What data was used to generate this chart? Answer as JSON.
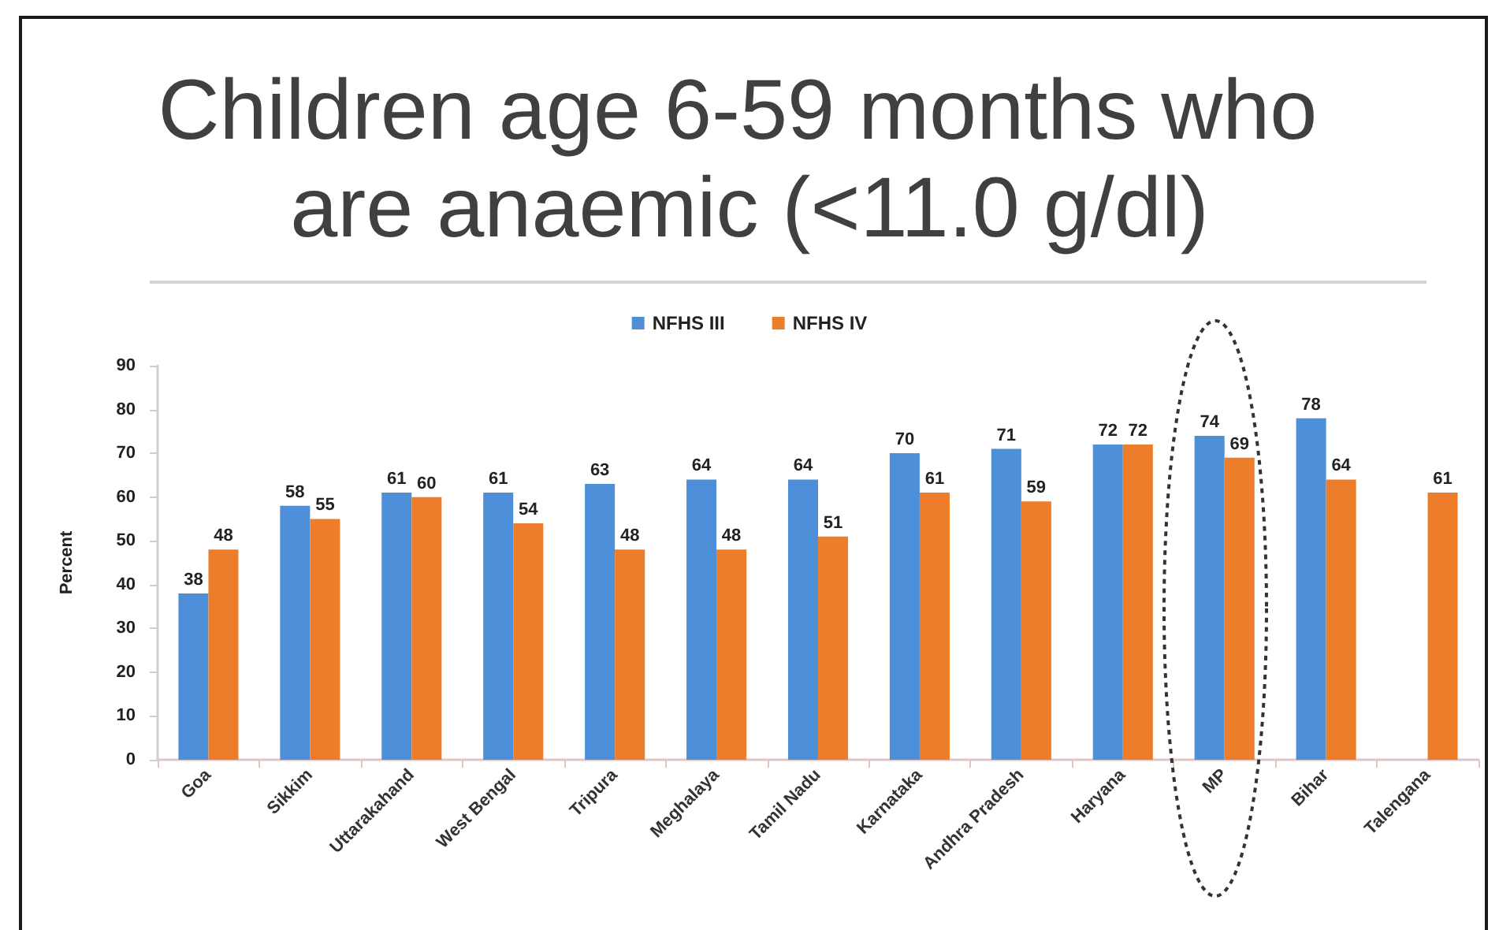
{
  "chart_data": {
    "type": "bar",
    "title": "Children age 6-59 months who are anaemic (<11.0 g/dl)",
    "ylabel": "Percent",
    "categories": [
      "Goa",
      "Sikkim",
      "Uttarakahand",
      "West Bengal",
      "Tripura",
      "Meghalaya",
      "Tamil Nadu",
      "Karnataka",
      "Andhra Pradesh",
      "Haryana",
      "MP",
      "Bihar",
      "Talengana"
    ],
    "series": [
      {
        "name": "NFHS III",
        "color": "#4e8fd9",
        "values": [
          38,
          58,
          61,
          61,
          63,
          64,
          64,
          70,
          71,
          72,
          74,
          78,
          null
        ]
      },
      {
        "name": "NFHS IV",
        "color": "#ee7d2b",
        "values": [
          48,
          55,
          60,
          54,
          48,
          48,
          51,
          61,
          59,
          72,
          69,
          64,
          61
        ]
      }
    ],
    "ylim": [
      0,
      90
    ],
    "yticks": [
      0,
      10,
      20,
      30,
      40,
      50,
      60,
      70,
      80,
      90
    ],
    "legend": "top",
    "data_labels": true
  }
}
